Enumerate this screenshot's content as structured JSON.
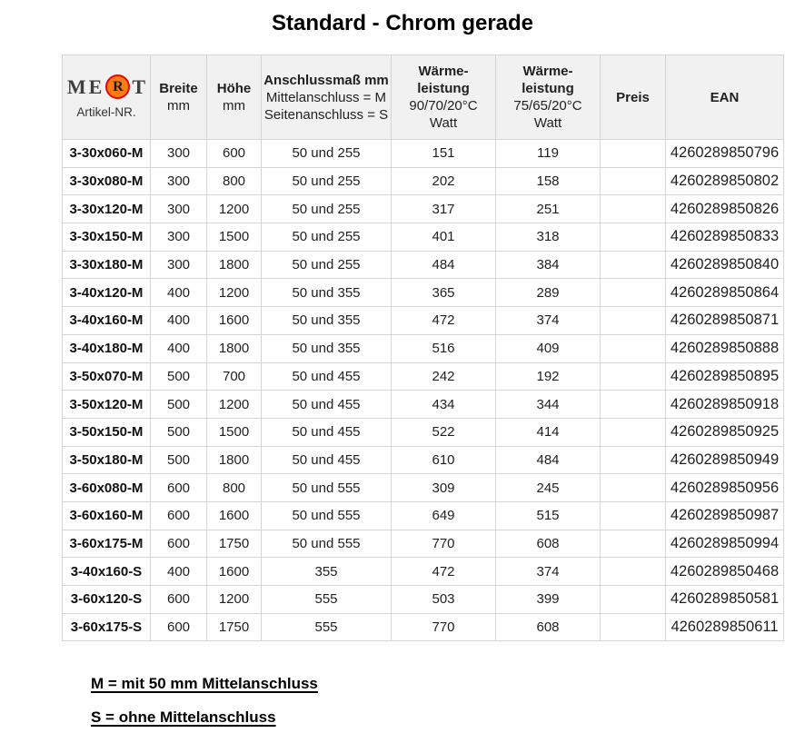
{
  "title": "Standard - Chrom gerade",
  "colors": {
    "header_bg": "#f1f1f1",
    "border": "#d5d5d5",
    "logo_circle_fill": "#fb7c11",
    "logo_circle_ring": "#e30613",
    "logo_letters": "#3f3f3f"
  },
  "logo": {
    "part1": "ME",
    "circle_letter": "R",
    "part2": "T",
    "sublabel": "Artikel-NR."
  },
  "header": {
    "breite": {
      "line1": "Breite",
      "line2": "mm"
    },
    "hoehe": {
      "line1": "Höhe",
      "line2": "mm"
    },
    "anschluss": {
      "line1": "Anschlussmaß mm",
      "line2": "Mittelanschluss = M",
      "line3": "Seitenanschluss = S"
    },
    "waerme90": {
      "line1": "Wärme-",
      "line2": "leistung",
      "line3": "90/70/20°C",
      "line4": "Watt"
    },
    "waerme75": {
      "line1": "Wärme-",
      "line2": "leistung",
      "line3": "75/65/20°C",
      "line4": "Watt"
    },
    "preis": "Preis",
    "ean": "EAN"
  },
  "rows": [
    [
      "3-30x060-M",
      "300",
      "600",
      "50 und 255",
      "151",
      "119",
      "",
      "4260289850796"
    ],
    [
      "3-30x080-M",
      "300",
      "800",
      "50 und 255",
      "202",
      "158",
      "",
      "4260289850802"
    ],
    [
      "3-30x120-M",
      "300",
      "1200",
      "50 und 255",
      "317",
      "251",
      "",
      "4260289850826"
    ],
    [
      "3-30x150-M",
      "300",
      "1500",
      "50 und 255",
      "401",
      "318",
      "",
      "4260289850833"
    ],
    [
      "3-30x180-M",
      "300",
      "1800",
      "50 und 255",
      "484",
      "384",
      "",
      "4260289850840"
    ],
    [
      "3-40x120-M",
      "400",
      "1200",
      "50 und 355",
      "365",
      "289",
      "",
      "4260289850864"
    ],
    [
      "3-40x160-M",
      "400",
      "1600",
      "50 und 355",
      "472",
      "374",
      "",
      "4260289850871"
    ],
    [
      "3-40x180-M",
      "400",
      "1800",
      "50 und 355",
      "516",
      "409",
      "",
      "4260289850888"
    ],
    [
      "3-50x070-M",
      "500",
      "700",
      "50 und 455",
      "242",
      "192",
      "",
      "4260289850895"
    ],
    [
      "3-50x120-M",
      "500",
      "1200",
      "50 und 455",
      "434",
      "344",
      "",
      "4260289850918"
    ],
    [
      "3-50x150-M",
      "500",
      "1500",
      "50 und 455",
      "522",
      "414",
      "",
      "4260289850925"
    ],
    [
      "3-50x180-M",
      "500",
      "1800",
      "50 und 455",
      "610",
      "484",
      "",
      "4260289850949"
    ],
    [
      "3-60x080-M",
      "600",
      "800",
      "50 und 555",
      "309",
      "245",
      "",
      "4260289850956"
    ],
    [
      "3-60x160-M",
      "600",
      "1600",
      "50 und 555",
      "649",
      "515",
      "",
      "4260289850987"
    ],
    [
      "3-60x175-M",
      "600",
      "1750",
      "50 und 555",
      "770",
      "608",
      "",
      "4260289850994"
    ],
    [
      "3-40x160-S",
      "400",
      "1600",
      "355",
      "472",
      "374",
      "",
      "4260289850468"
    ],
    [
      "3-60x120-S",
      "600",
      "1200",
      "555",
      "503",
      "399",
      "",
      "4260289850581"
    ],
    [
      "3-60x175-S",
      "600",
      "1750",
      "555",
      "770",
      "608",
      "",
      "4260289850611"
    ]
  ],
  "footnotes": {
    "m": "M = mit 50 mm Mittelanschluss",
    "s": "S = ohne Mittelanschluss"
  }
}
